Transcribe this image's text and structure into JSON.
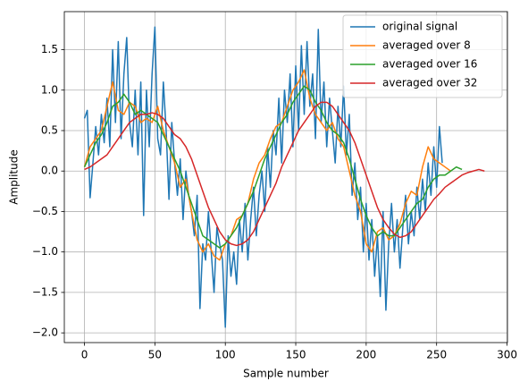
{
  "chart_data": {
    "type": "line",
    "xlabel": "Sample number",
    "ylabel": "Amplitude",
    "xlim": [
      -14.3,
      300.3
    ],
    "ylim": [
      -2.12,
      1.97
    ],
    "xticks": [
      0,
      50,
      100,
      150,
      200,
      250,
      300
    ],
    "yticks": [
      {
        "value": -2.0,
        "label": "−2.0"
      },
      {
        "value": -1.5,
        "label": "−1.5"
      },
      {
        "value": -1.0,
        "label": "−1.0"
      },
      {
        "value": -0.5,
        "label": "−0.5"
      },
      {
        "value": 0.0,
        "label": "0.0"
      },
      {
        "value": 0.5,
        "label": "0.5"
      },
      {
        "value": 1.0,
        "label": "1.0"
      },
      {
        "value": 1.5,
        "label": "1.5"
      }
    ],
    "grid": true,
    "legend": "upper right",
    "series": [
      {
        "name": "original signal",
        "color": "#1f77b4",
        "x": [
          0,
          2,
          4,
          6,
          8,
          10,
          12,
          14,
          16,
          18,
          20,
          22,
          24,
          26,
          28,
          30,
          32,
          34,
          36,
          38,
          40,
          42,
          44,
          46,
          48,
          50,
          52,
          54,
          56,
          58,
          60,
          62,
          64,
          66,
          68,
          70,
          72,
          74,
          76,
          78,
          80,
          82,
          84,
          86,
          88,
          90,
          92,
          94,
          96,
          98,
          100,
          102,
          104,
          106,
          108,
          110,
          112,
          114,
          116,
          118,
          120,
          122,
          124,
          126,
          128,
          130,
          132,
          134,
          136,
          138,
          140,
          142,
          144,
          146,
          148,
          150,
          152,
          154,
          156,
          158,
          160,
          162,
          164,
          166,
          168,
          170,
          172,
          174,
          176,
          178,
          180,
          182,
          184,
          186,
          188,
          190,
          192,
          194,
          196,
          198,
          200,
          202,
          204,
          206,
          208,
          210,
          212,
          214,
          216,
          218,
          220,
          222,
          224,
          226,
          228,
          230,
          232,
          234,
          236,
          238,
          240,
          242,
          244,
          246,
          248,
          250,
          252,
          254
        ],
        "values": [
          0.65,
          0.75,
          -0.33,
          0.1,
          0.55,
          0.2,
          0.7,
          0.35,
          0.9,
          0.3,
          1.5,
          0.6,
          1.6,
          0.4,
          1.2,
          1.65,
          0.6,
          0.3,
          1.0,
          0.2,
          1.1,
          -0.55,
          1.0,
          0.3,
          1.2,
          1.78,
          0.4,
          0.2,
          1.1,
          0.5,
          -0.35,
          0.6,
          0.1,
          -0.3,
          0.15,
          -0.6,
          0.0,
          -0.3,
          -0.5,
          -0.8,
          -0.3,
          -1.7,
          -0.9,
          -1.1,
          -0.5,
          -1.0,
          -1.5,
          -0.7,
          -0.9,
          -1.1,
          -1.93,
          -0.8,
          -1.3,
          -1.0,
          -1.4,
          -0.6,
          -1.0,
          -0.4,
          -1.1,
          -0.6,
          -0.2,
          -0.8,
          -0.3,
          0.0,
          -0.5,
          0.3,
          -0.2,
          0.5,
          0.2,
          0.9,
          0.1,
          1.0,
          0.6,
          1.2,
          0.3,
          1.3,
          0.5,
          1.55,
          0.7,
          1.6,
          0.8,
          1.2,
          0.4,
          1.75,
          0.6,
          1.1,
          0.3,
          0.9,
          0.5,
          0.1,
          0.8,
          0.3,
          1.05,
          0.2,
          0.7,
          -0.3,
          0.1,
          -0.6,
          -0.2,
          -1.0,
          -0.4,
          -1.1,
          -0.6,
          -1.3,
          -0.8,
          -1.55,
          -0.5,
          -1.72,
          -0.9,
          -0.4,
          -1.0,
          -0.6,
          -1.2,
          -0.7,
          -0.3,
          -0.9,
          -0.5,
          -0.8,
          -0.2,
          -0.6,
          -0.1,
          -0.5,
          0.1,
          -0.3,
          0.3,
          -0.2,
          0.55,
          0.1
        ]
      },
      {
        "name": "averaged over 8",
        "color": "#ff7f0e",
        "x": [
          0,
          4,
          8,
          12,
          16,
          20,
          24,
          28,
          32,
          36,
          40,
          44,
          48,
          52,
          56,
          60,
          64,
          68,
          72,
          76,
          80,
          84,
          88,
          92,
          96,
          100,
          104,
          108,
          112,
          116,
          120,
          124,
          128,
          132,
          136,
          140,
          144,
          148,
          152,
          156,
          160,
          164,
          168,
          172,
          176,
          180,
          184,
          188,
          192,
          196,
          200,
          204,
          208,
          212,
          216,
          220,
          224,
          228,
          232,
          236,
          240,
          244,
          248,
          252,
          256,
          260
        ],
        "values": [
          0.05,
          0.3,
          0.4,
          0.5,
          0.8,
          1.1,
          0.75,
          0.7,
          0.85,
          0.8,
          0.6,
          0.65,
          0.6,
          0.8,
          0.5,
          0.3,
          0.1,
          -0.2,
          -0.1,
          -0.5,
          -0.85,
          -1.0,
          -0.9,
          -1.05,
          -1.1,
          -0.9,
          -0.8,
          -0.6,
          -0.55,
          -0.4,
          -0.1,
          0.1,
          0.2,
          0.4,
          0.55,
          0.6,
          0.8,
          1.0,
          1.1,
          1.25,
          0.9,
          0.7,
          0.6,
          0.5,
          0.6,
          0.4,
          0.3,
          0.0,
          -0.3,
          -0.5,
          -0.9,
          -1.0,
          -0.75,
          -0.7,
          -0.85,
          -0.8,
          -0.65,
          -0.4,
          -0.25,
          -0.3,
          0.05,
          0.3,
          0.15,
          0.1,
          0.05,
          0.0
        ]
      },
      {
        "name": "averaged over 16",
        "color": "#2ca02c",
        "x": [
          0,
          4,
          8,
          12,
          16,
          20,
          24,
          28,
          32,
          36,
          40,
          44,
          48,
          52,
          56,
          60,
          64,
          68,
          72,
          76,
          80,
          84,
          88,
          92,
          96,
          100,
          104,
          108,
          112,
          116,
          120,
          124,
          128,
          132,
          136,
          140,
          144,
          148,
          152,
          156,
          160,
          164,
          168,
          172,
          176,
          180,
          184,
          188,
          192,
          196,
          200,
          204,
          208,
          212,
          216,
          220,
          224,
          228,
          232,
          236,
          240,
          244,
          248,
          252,
          256,
          260,
          264,
          268
        ],
        "values": [
          0.05,
          0.2,
          0.35,
          0.45,
          0.6,
          0.8,
          0.85,
          0.95,
          0.85,
          0.7,
          0.75,
          0.7,
          0.65,
          0.6,
          0.45,
          0.3,
          0.15,
          0.0,
          -0.2,
          -0.4,
          -0.6,
          -0.8,
          -0.85,
          -0.9,
          -0.95,
          -0.9,
          -0.8,
          -0.7,
          -0.55,
          -0.4,
          -0.25,
          -0.05,
          0.15,
          0.3,
          0.45,
          0.6,
          0.7,
          0.85,
          0.95,
          1.05,
          1.0,
          0.85,
          0.75,
          0.6,
          0.5,
          0.45,
          0.35,
          0.15,
          -0.1,
          -0.35,
          -0.55,
          -0.7,
          -0.8,
          -0.75,
          -0.8,
          -0.8,
          -0.7,
          -0.6,
          -0.5,
          -0.4,
          -0.35,
          -0.2,
          -0.1,
          -0.05,
          -0.05,
          0.0,
          0.05,
          0.02
        ]
      },
      {
        "name": "averaged over 32",
        "color": "#d62728",
        "x": [
          0,
          4,
          8,
          12,
          16,
          20,
          24,
          28,
          32,
          36,
          40,
          44,
          48,
          52,
          56,
          60,
          64,
          68,
          72,
          76,
          80,
          84,
          88,
          92,
          96,
          100,
          104,
          108,
          112,
          116,
          120,
          124,
          128,
          132,
          136,
          140,
          144,
          148,
          152,
          156,
          160,
          164,
          168,
          172,
          176,
          180,
          184,
          188,
          192,
          196,
          200,
          204,
          208,
          212,
          216,
          220,
          224,
          228,
          232,
          236,
          240,
          244,
          248,
          252,
          256,
          260,
          264,
          268,
          272,
          276,
          280,
          284
        ],
        "values": [
          0.02,
          0.05,
          0.1,
          0.15,
          0.2,
          0.3,
          0.4,
          0.5,
          0.6,
          0.65,
          0.7,
          0.7,
          0.72,
          0.7,
          0.65,
          0.55,
          0.45,
          0.4,
          0.3,
          0.15,
          -0.05,
          -0.25,
          -0.45,
          -0.6,
          -0.75,
          -0.85,
          -0.9,
          -0.92,
          -0.9,
          -0.85,
          -0.75,
          -0.6,
          -0.45,
          -0.3,
          -0.15,
          0.05,
          0.2,
          0.35,
          0.5,
          0.6,
          0.7,
          0.8,
          0.85,
          0.85,
          0.8,
          0.7,
          0.6,
          0.5,
          0.35,
          0.15,
          -0.05,
          -0.25,
          -0.45,
          -0.6,
          -0.7,
          -0.78,
          -0.82,
          -0.8,
          -0.75,
          -0.65,
          -0.55,
          -0.45,
          -0.35,
          -0.28,
          -0.2,
          -0.15,
          -0.1,
          -0.05,
          -0.02,
          0.0,
          0.02,
          0.0
        ]
      }
    ]
  }
}
